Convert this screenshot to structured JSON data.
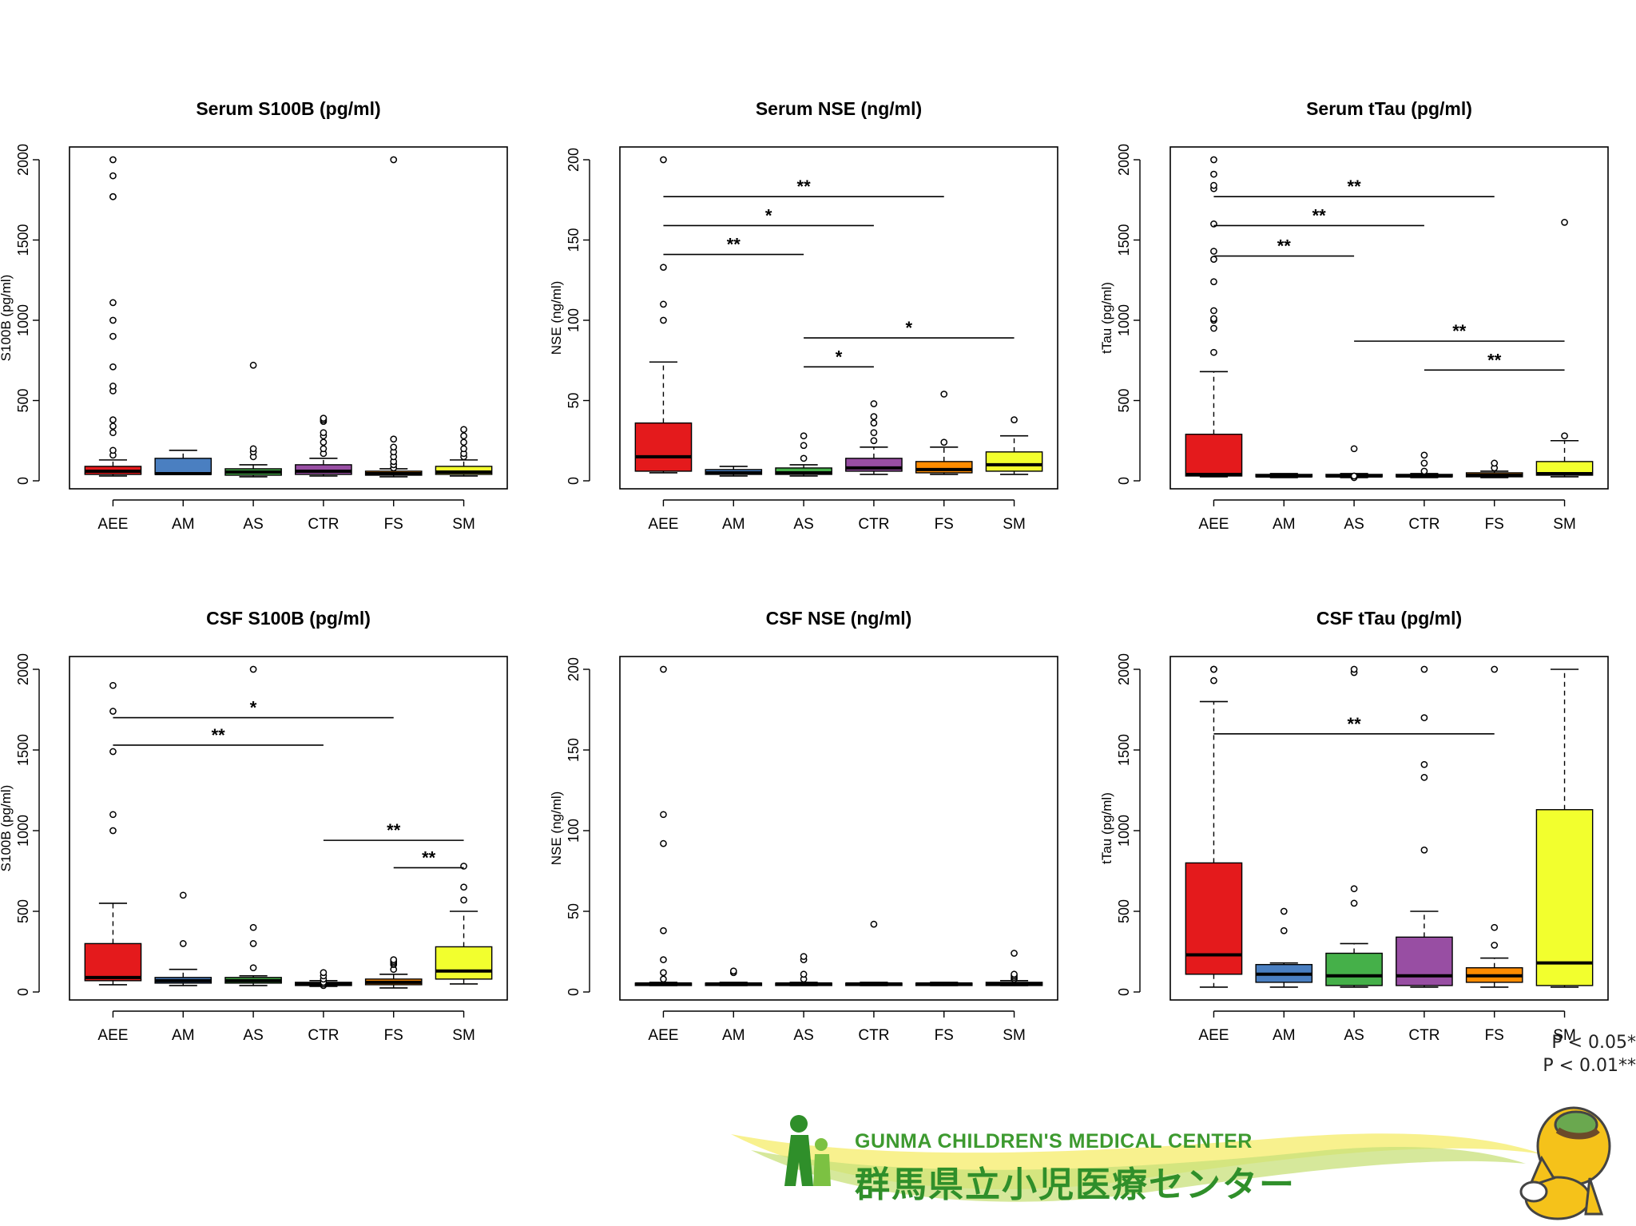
{
  "legend": {
    "p05": "P < 0.05*",
    "p01": "P < 0.01**"
  },
  "logo": {
    "english": "GUNMA CHILDREN'S MEDICAL CENTER",
    "japanese": "群馬県立小児医療センター",
    "mascot_icon": "horse-mascot-icon",
    "figure_icon": "child-figure-icon"
  },
  "colors": {
    "AEE": "#e41a1c",
    "AM": "#4a7fc1",
    "AS": "#45b049",
    "CTR": "#984ea3",
    "FS": "#ff8c00",
    "SM": "#f2ff2e"
  },
  "chart_data": [
    {
      "type": "box",
      "title": "Serum S100B (pg/ml)",
      "ylabel": "S100B (pg/ml)",
      "ylim": [
        0,
        2000
      ],
      "yticks": [
        0,
        500,
        1000,
        1500,
        2000
      ],
      "categories": [
        "AEE",
        "AM",
        "AS",
        "CTR",
        "FS",
        "SM"
      ],
      "boxes": [
        {
          "q1": 40,
          "median": 60,
          "q3": 90,
          "whisker_low": 30,
          "whisker_high": 130,
          "outliers": [
            160,
            190,
            300,
            340,
            380,
            560,
            590,
            710,
            900,
            1000,
            1110,
            1770,
            1770,
            1900,
            2000
          ]
        },
        {
          "q1": 40,
          "median": 45,
          "q3": 140,
          "whisker_low": 40,
          "whisker_high": 190,
          "outliers": []
        },
        {
          "q1": 35,
          "median": 55,
          "q3": 75,
          "whisker_low": 25,
          "whisker_high": 100,
          "outliers": [
            150,
            180,
            200,
            720
          ]
        },
        {
          "q1": 40,
          "median": 60,
          "q3": 100,
          "whisker_low": 30,
          "whisker_high": 140,
          "outliers": [
            170,
            200,
            240,
            280,
            300,
            370,
            380,
            390
          ]
        },
        {
          "q1": 35,
          "median": 45,
          "q3": 60,
          "whisker_low": 25,
          "whisker_high": 75,
          "outliers": [
            80,
            100,
            120,
            150,
            180,
            210,
            260,
            2000
          ]
        },
        {
          "q1": 40,
          "median": 55,
          "q3": 90,
          "whisker_low": 30,
          "whisker_high": 130,
          "outliers": [
            150,
            170,
            200,
            240,
            280,
            320
          ]
        }
      ],
      "significance": []
    },
    {
      "type": "box",
      "title": "Serum NSE (ng/ml)",
      "ylabel": "NSE (ng/ml)",
      "ylim": [
        0,
        200
      ],
      "yticks": [
        0,
        50,
        100,
        150,
        200
      ],
      "categories": [
        "AEE",
        "AM",
        "AS",
        "CTR",
        "FS",
        "SM"
      ],
      "boxes": [
        {
          "q1": 6,
          "median": 15,
          "q3": 36,
          "whisker_low": 5,
          "whisker_high": 74,
          "outliers": [
            100,
            110,
            133,
            200
          ]
        },
        {
          "q1": 4,
          "median": 5,
          "q3": 7,
          "whisker_low": 3,
          "whisker_high": 9,
          "outliers": []
        },
        {
          "q1": 4,
          "median": 5,
          "q3": 8,
          "whisker_low": 3,
          "whisker_high": 10,
          "outliers": [
            14,
            22,
            28
          ]
        },
        {
          "q1": 6,
          "median": 8,
          "q3": 14,
          "whisker_low": 4,
          "whisker_high": 21,
          "outliers": [
            25,
            30,
            36,
            40,
            48
          ]
        },
        {
          "q1": 5,
          "median": 7,
          "q3": 12,
          "whisker_low": 4,
          "whisker_high": 21,
          "outliers": [
            24,
            54
          ]
        },
        {
          "q1": 6,
          "median": 10,
          "q3": 18,
          "whisker_low": 4,
          "whisker_high": 28,
          "outliers": [
            38
          ]
        }
      ],
      "significance": [
        {
          "from": "AEE",
          "to": "FS",
          "y": 177,
          "label": "**"
        },
        {
          "from": "AEE",
          "to": "CTR",
          "y": 159,
          "label": "*"
        },
        {
          "from": "AEE",
          "to": "AS",
          "y": 141,
          "label": "**"
        },
        {
          "from": "AS",
          "to": "SM",
          "y": 89,
          "label": "*"
        },
        {
          "from": "AS",
          "to": "CTR",
          "y": 71,
          "label": "*"
        }
      ]
    },
    {
      "type": "box",
      "title": "Serum tTau (pg/ml)",
      "ylabel": "tTau (pg/ml)",
      "ylim": [
        0,
        2000
      ],
      "yticks": [
        0,
        500,
        1000,
        1500,
        2000
      ],
      "categories": [
        "AEE",
        "AM",
        "AS",
        "CTR",
        "FS",
        "SM"
      ],
      "boxes": [
        {
          "q1": 30,
          "median": 40,
          "q3": 290,
          "whisker_low": 25,
          "whisker_high": 680,
          "outliers": [
            800,
            950,
            1000,
            1010,
            1060,
            1240,
            1380,
            1430,
            1600,
            1820,
            1840,
            1910,
            2000
          ]
        },
        {
          "q1": 25,
          "median": 30,
          "q3": 40,
          "whisker_low": 20,
          "whisker_high": 45,
          "outliers": []
        },
        {
          "q1": 25,
          "median": 30,
          "q3": 40,
          "whisker_low": 20,
          "whisker_high": 45,
          "outliers": [
            20,
            30,
            200
          ]
        },
        {
          "q1": 25,
          "median": 30,
          "q3": 40,
          "whisker_low": 20,
          "whisker_high": 45,
          "outliers": [
            60,
            110,
            160
          ]
        },
        {
          "q1": 25,
          "median": 35,
          "q3": 50,
          "whisker_low": 20,
          "whisker_high": 60,
          "outliers": [
            80,
            110
          ]
        },
        {
          "q1": 35,
          "median": 45,
          "q3": 120,
          "whisker_low": 25,
          "whisker_high": 250,
          "outliers": [
            280,
            1610
          ]
        }
      ],
      "significance": [
        {
          "from": "AEE",
          "to": "FS",
          "y": 1770,
          "label": "**"
        },
        {
          "from": "AEE",
          "to": "CTR",
          "y": 1590,
          "label": "**"
        },
        {
          "from": "AEE",
          "to": "AS",
          "y": 1400,
          "label": "**"
        },
        {
          "from": "AS",
          "to": "SM",
          "y": 870,
          "label": "**"
        },
        {
          "from": "CTR",
          "to": "SM",
          "y": 690,
          "label": "**"
        }
      ]
    },
    {
      "type": "box",
      "title": "CSF S100B (pg/ml)",
      "ylabel": "S100B (pg/ml)",
      "ylim": [
        0,
        2000
      ],
      "yticks": [
        0,
        500,
        1000,
        1500,
        2000
      ],
      "categories": [
        "AEE",
        "AM",
        "AS",
        "CTR",
        "FS",
        "SM"
      ],
      "boxes": [
        {
          "q1": 70,
          "median": 90,
          "q3": 300,
          "whisker_low": 45,
          "whisker_high": 550,
          "outliers": [
            1000,
            1100,
            1490,
            1740,
            1900
          ]
        },
        {
          "q1": 55,
          "median": 70,
          "q3": 90,
          "whisker_low": 40,
          "whisker_high": 140,
          "outliers": [
            300,
            600
          ]
        },
        {
          "q1": 55,
          "median": 70,
          "q3": 90,
          "whisker_low": 40,
          "whisker_high": 100,
          "outliers": [
            150,
            300,
            400,
            2000
          ]
        },
        {
          "q1": 40,
          "median": 50,
          "q3": 60,
          "whisker_low": 35,
          "whisker_high": 70,
          "outliers": [
            40,
            50,
            60,
            80,
            100,
            120
          ]
        },
        {
          "q1": 45,
          "median": 60,
          "q3": 80,
          "whisker_low": 25,
          "whisker_high": 110,
          "outliers": [
            140,
            170,
            180,
            190,
            200
          ]
        },
        {
          "q1": 80,
          "median": 130,
          "q3": 280,
          "whisker_low": 50,
          "whisker_high": 500,
          "outliers": [
            570,
            650,
            780
          ]
        }
      ],
      "significance": [
        {
          "from": "AEE",
          "to": "FS",
          "y": 1700,
          "label": "*"
        },
        {
          "from": "AEE",
          "to": "CTR",
          "y": 1530,
          "label": "**"
        },
        {
          "from": "CTR",
          "to": "SM",
          "y": 940,
          "label": "**"
        },
        {
          "from": "FS",
          "to": "SM",
          "y": 770,
          "label": "**"
        }
      ]
    },
    {
      "type": "box",
      "title": "CSF NSE (ng/ml)",
      "ylabel": "NSE (ng/ml)",
      "ylim": [
        0,
        200
      ],
      "yticks": [
        0,
        50,
        100,
        150,
        200
      ],
      "categories": [
        "AEE",
        "AM",
        "AS",
        "CTR",
        "FS",
        "SM"
      ],
      "boxes": [
        {
          "q1": 4,
          "median": 5,
          "q3": 5.5,
          "whisker_low": 4,
          "whisker_high": 6,
          "outliers": [
            8,
            12,
            20,
            38,
            92,
            110,
            200
          ]
        },
        {
          "q1": 4,
          "median": 5,
          "q3": 5.5,
          "whisker_low": 4,
          "whisker_high": 6,
          "outliers": [
            12,
            13
          ]
        },
        {
          "q1": 4,
          "median": 5,
          "q3": 5.5,
          "whisker_low": 4,
          "whisker_high": 6,
          "outliers": [
            8,
            11,
            20,
            22
          ]
        },
        {
          "q1": 4,
          "median": 5,
          "q3": 5.5,
          "whisker_low": 4,
          "whisker_high": 6,
          "outliers": [
            42
          ]
        },
        {
          "q1": 4,
          "median": 5,
          "q3": 5.5,
          "whisker_low": 4,
          "whisker_high": 6,
          "outliers": []
        },
        {
          "q1": 4,
          "median": 5,
          "q3": 6,
          "whisker_low": 4,
          "whisker_high": 7,
          "outliers": [
            8,
            9,
            10,
            11,
            24
          ]
        }
      ],
      "significance": []
    },
    {
      "type": "box",
      "title": "CSF tTau (pg/ml)",
      "ylabel": "tTau (pg/ml)",
      "ylim": [
        0,
        2000
      ],
      "yticks": [
        0,
        500,
        1000,
        1500,
        2000
      ],
      "categories": [
        "AEE",
        "AM",
        "AS",
        "CTR",
        "FS",
        "SM"
      ],
      "boxes": [
        {
          "q1": 110,
          "median": 230,
          "q3": 800,
          "whisker_low": 30,
          "whisker_high": 1800,
          "outliers": [
            1930,
            2000,
            2000
          ]
        },
        {
          "q1": 60,
          "median": 110,
          "q3": 170,
          "whisker_low": 30,
          "whisker_high": 180,
          "outliers": [
            380,
            500
          ]
        },
        {
          "q1": 40,
          "median": 100,
          "q3": 240,
          "whisker_low": 30,
          "whisker_high": 300,
          "outliers": [
            550,
            640,
            1980,
            2000
          ]
        },
        {
          "q1": 40,
          "median": 100,
          "q3": 340,
          "whisker_low": 30,
          "whisker_high": 500,
          "outliers": [
            880,
            1330,
            1410,
            1700,
            2000
          ]
        },
        {
          "q1": 60,
          "median": 100,
          "q3": 150,
          "whisker_low": 30,
          "whisker_high": 210,
          "outliers": [
            290,
            400,
            2000
          ]
        },
        {
          "q1": 40,
          "median": 180,
          "q3": 1130,
          "whisker_low": 30,
          "whisker_high": 2000,
          "outliers": []
        }
      ],
      "significance": [
        {
          "from": "AEE",
          "to": "FS",
          "y": 1600,
          "label": "**"
        }
      ]
    }
  ]
}
